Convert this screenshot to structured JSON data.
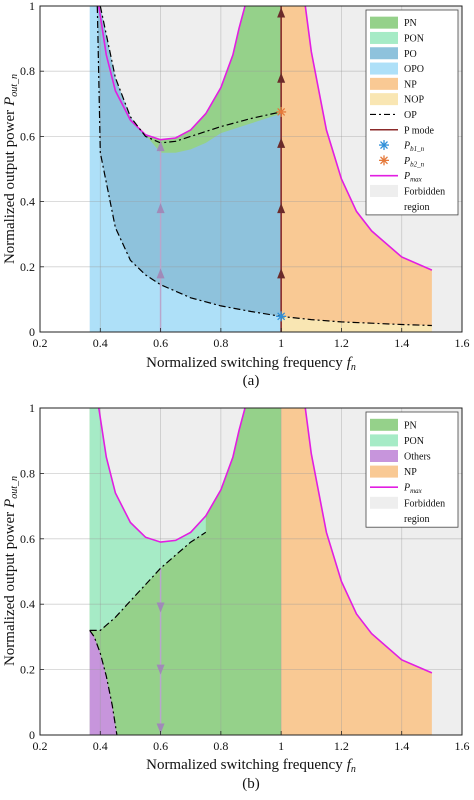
{
  "chart_data": [
    {
      "panel_label": "(a)",
      "type": "area",
      "xlabel": "Normalized switching frequency",
      "xlabel_sub": "n",
      "ylabel": "Normalized output power",
      "ylabel_sub": "out_n",
      "xlim": [
        0.2,
        1.6
      ],
      "ylim": [
        0,
        1
      ],
      "xticks": [
        "0.2",
        "0.4",
        "0.6",
        "0.8",
        "1",
        "1.2",
        "1.4",
        "1.6"
      ],
      "yticks": [
        "0",
        "0.2",
        "0.4",
        "0.6",
        "0.8",
        "1"
      ],
      "grid": true,
      "legend_position": "top-right",
      "legend": [
        {
          "label": "PN",
          "kind": "patch",
          "color": "#95d18a"
        },
        {
          "label": "PON",
          "kind": "patch",
          "color": "#a6ebc6"
        },
        {
          "label": "PO",
          "kind": "patch",
          "color": "#8ec2dc"
        },
        {
          "label": "OPO",
          "kind": "patch",
          "color": "#aee0f8"
        },
        {
          "label": "NP",
          "kind": "patch",
          "color": "#f9c994"
        },
        {
          "label": "NOP",
          "kind": "patch",
          "color": "#f9e6b3"
        },
        {
          "label": "OP",
          "kind": "dashdot",
          "color": "#000000"
        },
        {
          "label": "P mode",
          "kind": "line",
          "color": "#8b2a2a"
        },
        {
          "label": "P",
          "sub": "b1_n",
          "kind": "star",
          "color": "#2f8fd8"
        },
        {
          "label": "P",
          "sub": "b2_n",
          "kind": "star",
          "color": "#e5793a"
        },
        {
          "label": "P",
          "sub": "max",
          "kind": "line",
          "color": "#e21ee2"
        },
        {
          "label": "Forbidden region",
          "kind": "patch",
          "color": "#eeeeee"
        }
      ],
      "curves": {
        "p_max_left": {
          "x": [
            0.395,
            0.42,
            0.45,
            0.5,
            0.55,
            0.6,
            0.65,
            0.7,
            0.75,
            0.8,
            0.84,
            0.86,
            0.88
          ],
          "y": [
            1.0,
            0.85,
            0.74,
            0.65,
            0.605,
            0.59,
            0.595,
            0.62,
            0.67,
            0.75,
            0.85,
            0.93,
            1.0
          ]
        },
        "p_max_right": {
          "x": [
            1.08,
            1.1,
            1.15,
            1.2,
            1.25,
            1.3,
            1.4,
            1.5
          ],
          "y": [
            1.0,
            0.86,
            0.62,
            0.47,
            0.37,
            0.31,
            0.23,
            0.19
          ]
        },
        "op_boundary_upper": {
          "x": [
            0.4,
            0.45,
            0.5,
            0.55,
            0.6,
            0.65,
            0.7,
            0.8,
            0.9,
            1.0
          ],
          "y": [
            1.0,
            0.78,
            0.66,
            0.6,
            0.58,
            0.585,
            0.6,
            0.63,
            0.655,
            0.675
          ]
        },
        "op_boundary_lower": {
          "x": [
            0.39,
            0.4,
            0.45,
            0.5,
            0.55,
            0.6,
            0.7,
            0.8,
            0.9,
            1.0,
            1.1,
            1.2,
            1.3,
            1.4,
            1.5
          ],
          "y": [
            1.0,
            0.55,
            0.32,
            0.22,
            0.175,
            0.145,
            0.105,
            0.08,
            0.063,
            0.048,
            0.038,
            0.031,
            0.027,
            0.023,
            0.02
          ]
        },
        "pn_lower_edge": {
          "x": [
            0.6,
            0.65,
            0.7,
            0.75,
            0.8,
            0.9,
            1.0
          ],
          "y": [
            0.55,
            0.55,
            0.56,
            0.58,
            0.61,
            0.64,
            0.67
          ]
        },
        "op_region_left_edge": 0.365,
        "p_mode_x": 1.0,
        "trajectory_x": 0.6,
        "trajectory_arrows_up": [
          0.18,
          0.38,
          0.57
        ],
        "p_mode_arrows_up": [
          0.18,
          0.38,
          0.58,
          0.78,
          0.98
        ],
        "p_b1": {
          "x": 1.0,
          "y": 0.048
        },
        "p_b2": {
          "x": 1.0,
          "y": 0.675
        }
      }
    },
    {
      "panel_label": "(b)",
      "type": "area",
      "xlabel": "Normalized switching frequency",
      "xlabel_sub": "n",
      "ylabel": "Normalized output power",
      "ylabel_sub": "out_n",
      "xlim": [
        0.2,
        1.6
      ],
      "ylim": [
        0,
        1
      ],
      "xticks": [
        "0.2",
        "0.4",
        "0.6",
        "0.8",
        "1",
        "1.2",
        "1.4",
        "1.6"
      ],
      "yticks": [
        "0",
        "0.2",
        "0.4",
        "0.6",
        "0.8",
        "1"
      ],
      "grid": true,
      "legend_position": "top-right",
      "legend": [
        {
          "label": "PN",
          "kind": "patch",
          "color": "#95d18a"
        },
        {
          "label": "PON",
          "kind": "patch",
          "color": "#a6ebc6"
        },
        {
          "label": "Others",
          "kind": "patch",
          "color": "#c795dc"
        },
        {
          "label": "NP",
          "kind": "patch",
          "color": "#f9c994"
        },
        {
          "label": "P",
          "sub": "max",
          "kind": "line",
          "color": "#e21ee2"
        },
        {
          "label": "Forbidden region",
          "kind": "patch",
          "color": "#eeeeee"
        }
      ],
      "curves": {
        "p_max_left": {
          "x": [
            0.395,
            0.42,
            0.45,
            0.5,
            0.55,
            0.6,
            0.65,
            0.7,
            0.75,
            0.8,
            0.84,
            0.86,
            0.88
          ],
          "y": [
            1.0,
            0.85,
            0.74,
            0.65,
            0.605,
            0.59,
            0.595,
            0.62,
            0.67,
            0.75,
            0.85,
            0.93,
            1.0
          ]
        },
        "p_max_right": {
          "x": [
            1.08,
            1.1,
            1.15,
            1.2,
            1.25,
            1.3,
            1.4,
            1.5
          ],
          "y": [
            1.0,
            0.86,
            0.62,
            0.47,
            0.37,
            0.31,
            0.23,
            0.19
          ]
        },
        "pon_pn_boundary": {
          "x": [
            0.365,
            0.4,
            0.45,
            0.5,
            0.55,
            0.6,
            0.65,
            0.7,
            0.75
          ],
          "y": [
            0.32,
            0.32,
            0.36,
            0.41,
            0.46,
            0.51,
            0.55,
            0.59,
            0.62
          ]
        },
        "others_boundary": {
          "x": [
            0.365,
            0.38,
            0.4,
            0.42,
            0.44,
            0.455
          ],
          "y": [
            0.32,
            0.3,
            0.25,
            0.18,
            0.09,
            0.0
          ]
        },
        "region_left_edge": 0.365,
        "pn_right_edge": 1.0,
        "trajectory_x": 0.6,
        "trajectory_arrows_down": [
          0.39,
          0.2,
          0.02
        ]
      }
    }
  ]
}
